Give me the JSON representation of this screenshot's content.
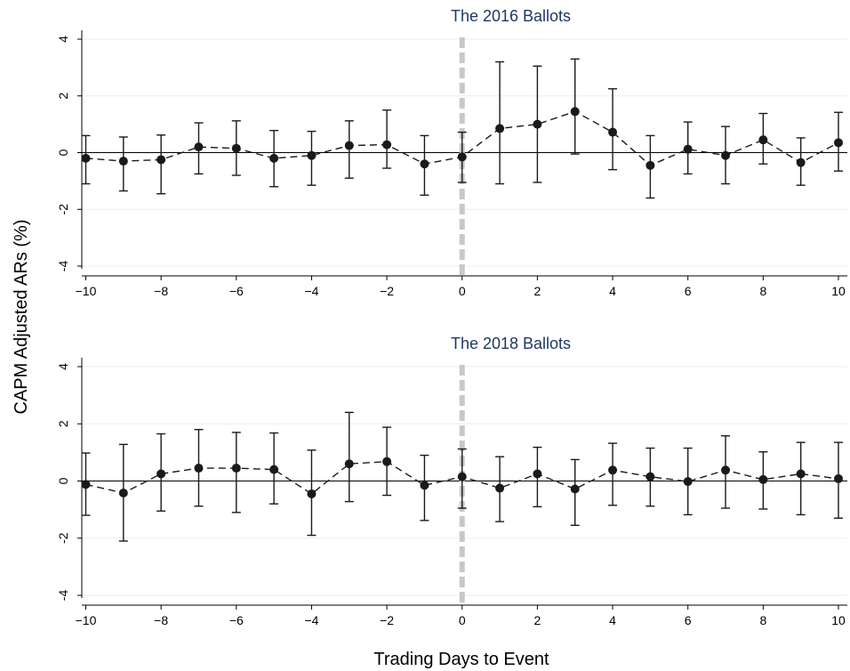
{
  "chart_data": {
    "type": "line",
    "ylabel": "CAPM Adjusted ARs (%)",
    "xlabel": "Trading Days to Event",
    "grid": true,
    "reference_lines": {
      "horizontal_y": 0,
      "event_vertical_x": 0
    },
    "colors": {
      "series": "#1a1a1a",
      "event_line": "#c8c8c8",
      "title": "#1f3864",
      "grid": "#eeeeee"
    },
    "panels": [
      {
        "title": "The 2016 Ballots",
        "xlim": [
          -10,
          10
        ],
        "ylim": [
          -4,
          4
        ],
        "xticks": [
          -10,
          -8,
          -6,
          -4,
          -2,
          0,
          2,
          4,
          6,
          8,
          10
        ],
        "yticks": [
          -4,
          -2,
          0,
          2,
          4
        ],
        "x": [
          -10,
          -9,
          -8,
          -7,
          -6,
          -5,
          -4,
          -3,
          -2,
          -1,
          0,
          1,
          2,
          3,
          4,
          5,
          6,
          7,
          8,
          9,
          10
        ],
        "y": [
          -0.2,
          -0.3,
          -0.25,
          0.2,
          0.15,
          -0.2,
          -0.1,
          0.25,
          0.28,
          -0.4,
          -0.15,
          0.85,
          1.0,
          1.45,
          0.72,
          -0.45,
          0.12,
          -0.1,
          0.45,
          -0.35,
          0.35
        ],
        "ci_low": [
          -1.1,
          -1.35,
          -1.45,
          -0.75,
          -0.8,
          -1.2,
          -1.15,
          -0.9,
          -0.55,
          -1.5,
          -1.05,
          -1.1,
          -1.05,
          -0.05,
          -0.6,
          -1.6,
          -0.75,
          -1.1,
          -0.4,
          -1.15,
          -0.65
        ],
        "ci_high": [
          0.6,
          0.55,
          0.62,
          1.05,
          1.12,
          0.78,
          0.75,
          1.12,
          1.5,
          0.6,
          0.72,
          3.2,
          3.05,
          3.3,
          2.25,
          0.6,
          1.08,
          0.92,
          1.38,
          0.52,
          1.42
        ]
      },
      {
        "title": "The 2018 Ballots",
        "xlim": [
          -10,
          10
        ],
        "ylim": [
          -4,
          4
        ],
        "xticks": [
          -10,
          -8,
          -6,
          -4,
          -2,
          0,
          2,
          4,
          6,
          8,
          10
        ],
        "yticks": [
          -4,
          -2,
          0,
          2,
          4
        ],
        "x": [
          -10,
          -9,
          -8,
          -7,
          -6,
          -5,
          -4,
          -3,
          -2,
          -1,
          0,
          1,
          2,
          3,
          4,
          5,
          6,
          7,
          8,
          9,
          10
        ],
        "y": [
          -0.12,
          -0.42,
          0.25,
          0.45,
          0.45,
          0.4,
          -0.45,
          0.6,
          0.68,
          -0.15,
          0.15,
          -0.25,
          0.25,
          -0.28,
          0.38,
          0.15,
          -0.02,
          0.38,
          0.05,
          0.25,
          0.08
        ],
        "ci_low": [
          -1.2,
          -2.1,
          -1.05,
          -0.88,
          -1.1,
          -0.8,
          -1.9,
          -0.72,
          -0.5,
          -1.38,
          -0.95,
          -1.42,
          -0.9,
          -1.55,
          -0.85,
          -0.88,
          -1.18,
          -0.95,
          -0.98,
          -1.18,
          -1.3
        ],
        "ci_high": [
          0.98,
          1.28,
          1.65,
          1.8,
          1.7,
          1.68,
          1.08,
          2.4,
          1.88,
          0.9,
          1.12,
          0.85,
          1.18,
          0.75,
          1.32,
          1.15,
          1.15,
          1.58,
          1.02,
          1.35,
          1.35
        ]
      }
    ]
  }
}
